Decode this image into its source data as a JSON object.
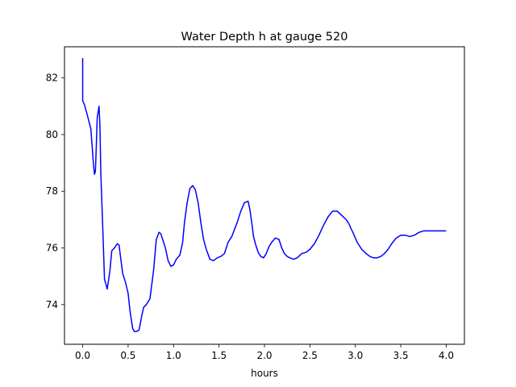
{
  "chart_data": {
    "type": "line",
    "title": "Water Depth h at gauge 520",
    "xlabel": "hours",
    "ylabel": "",
    "xlim": [
      -0.2,
      4.2
    ],
    "ylim": [
      72.6,
      83.1
    ],
    "xticks": [
      0.0,
      0.5,
      1.0,
      1.5,
      2.0,
      2.5,
      3.0,
      3.5,
      4.0
    ],
    "xtick_labels": [
      "0.0",
      "0.5",
      "1.0",
      "1.5",
      "2.0",
      "2.5",
      "3.0",
      "3.5",
      "4.0"
    ],
    "yticks": [
      74,
      76,
      78,
      80,
      82
    ],
    "ytick_labels": [
      "74",
      "76",
      "78",
      "80",
      "82"
    ],
    "grid": false,
    "series": [
      {
        "color": "#0000ff",
        "x": [
          0.0,
          0.0,
          0.0,
          0.02,
          0.05,
          0.09,
          0.12,
          0.13,
          0.14,
          0.15,
          0.16,
          0.18,
          0.19,
          0.2,
          0.22,
          0.24,
          0.27,
          0.3,
          0.32,
          0.35,
          0.38,
          0.4,
          0.42,
          0.44,
          0.47,
          0.5,
          0.52,
          0.55,
          0.57,
          0.59,
          0.62,
          0.65,
          0.67,
          0.7,
          0.74,
          0.78,
          0.81,
          0.84,
          0.86,
          0.88,
          0.91,
          0.94,
          0.97,
          1.0,
          1.03,
          1.07,
          1.1,
          1.12,
          1.15,
          1.18,
          1.21,
          1.24,
          1.27,
          1.3,
          1.33,
          1.36,
          1.4,
          1.44,
          1.48,
          1.52,
          1.56,
          1.6,
          1.64,
          1.67,
          1.7,
          1.74,
          1.78,
          1.82,
          1.84,
          1.86,
          1.88,
          1.9,
          1.93,
          1.96,
          1.99,
          2.02,
          2.05,
          2.08,
          2.12,
          2.16,
          2.19,
          2.22,
          2.25,
          2.28,
          2.32,
          2.36,
          2.41,
          2.46,
          2.5,
          2.55,
          2.6,
          2.65,
          2.7,
          2.75,
          2.8,
          2.85,
          2.9,
          2.93,
          2.95,
          2.98,
          3.02,
          3.07,
          3.12,
          3.16,
          3.2,
          3.24,
          3.28,
          3.32,
          3.36,
          3.4,
          3.45,
          3.5,
          3.55,
          3.6,
          3.65,
          3.7,
          3.75,
          3.8,
          3.85,
          3.9,
          3.93,
          3.96,
          4.0
        ],
        "y": [
          82.7,
          81.25,
          81.2,
          81.05,
          80.7,
          80.2,
          78.9,
          78.6,
          78.7,
          79.6,
          80.6,
          81.0,
          80.3,
          78.6,
          76.8,
          74.9,
          74.55,
          75.2,
          75.9,
          76.0,
          76.15,
          76.1,
          75.6,
          75.1,
          74.8,
          74.4,
          73.8,
          73.15,
          73.05,
          73.05,
          73.1,
          73.6,
          73.9,
          74.0,
          74.2,
          75.2,
          76.3,
          76.55,
          76.5,
          76.3,
          76.0,
          75.55,
          75.35,
          75.4,
          75.6,
          75.75,
          76.2,
          76.9,
          77.6,
          78.1,
          78.2,
          78.05,
          77.6,
          76.9,
          76.3,
          75.95,
          75.6,
          75.55,
          75.65,
          75.7,
          75.8,
          76.2,
          76.4,
          76.65,
          76.9,
          77.3,
          77.6,
          77.65,
          77.35,
          76.9,
          76.4,
          76.15,
          75.85,
          75.7,
          75.65,
          75.8,
          76.05,
          76.2,
          76.35,
          76.3,
          76.0,
          75.8,
          75.7,
          75.65,
          75.6,
          75.65,
          75.8,
          75.85,
          75.95,
          76.15,
          76.45,
          76.8,
          77.1,
          77.3,
          77.3,
          77.15,
          77.0,
          76.85,
          76.7,
          76.5,
          76.2,
          75.95,
          75.8,
          75.7,
          75.65,
          75.65,
          75.7,
          75.8,
          75.95,
          76.15,
          76.35,
          76.45,
          76.45,
          76.4,
          76.45,
          76.55,
          76.6,
          76.6,
          76.6,
          76.6,
          76.6,
          76.6,
          76.6
        ]
      }
    ]
  }
}
